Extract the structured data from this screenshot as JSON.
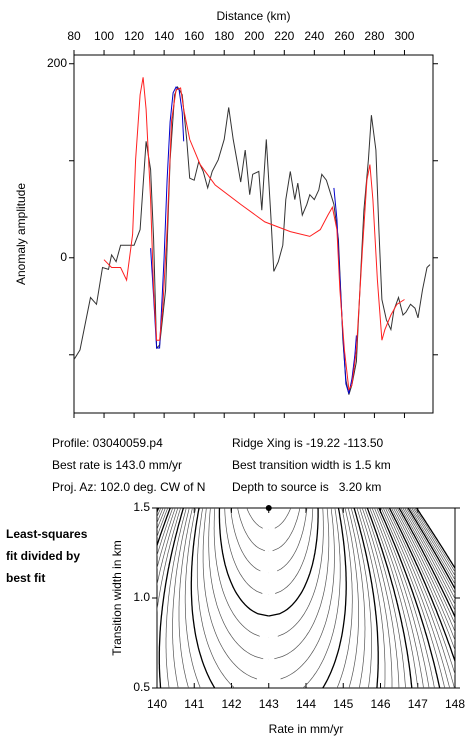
{
  "chart_data": [
    {
      "type": "line",
      "xlabel": "Distance (km)",
      "ylabel": "Anomaly amplitude",
      "xlim": [
        80,
        319
      ],
      "ylim": [
        -160,
        209
      ],
      "xticks": [
        80,
        100,
        120,
        140,
        160,
        180,
        200,
        220,
        240,
        260,
        280,
        300
      ],
      "yticks": [
        0,
        200
      ],
      "minor_yticks": [
        -100,
        100
      ],
      "series": [
        {
          "color": "#333333",
          "x": [
            80,
            84,
            88,
            91,
            95,
            99,
            103,
            105,
            108,
            111,
            120,
            124,
            128,
            131,
            133,
            135,
            137,
            139,
            141,
            144,
            147,
            149,
            152,
            155,
            157,
            160,
            163,
            166,
            169,
            172,
            176,
            180,
            183,
            186,
            189,
            191,
            194,
            197,
            199,
            203,
            205,
            208,
            211,
            213,
            216,
            219,
            221,
            224,
            227,
            229,
            232,
            235,
            237,
            240,
            243,
            245,
            248,
            251,
            253,
            256,
            259,
            261,
            263,
            265,
            268,
            271,
            273,
            276,
            278,
            281,
            283,
            285,
            288,
            291,
            293,
            296,
            299,
            301,
            304,
            307,
            309,
            312,
            315,
            317
          ],
          "values": [
            -105,
            -95,
            -64,
            -41,
            -48,
            -10,
            -12,
            3,
            -4,
            13,
            13,
            29,
            120,
            91,
            19,
            -93,
            -90,
            -62,
            -33,
            101,
            168,
            176,
            168,
            122,
            82,
            80,
            99,
            89,
            72,
            89,
            101,
            122,
            155,
            122,
            96,
            78,
            111,
            65,
            86,
            89,
            49,
            122,
            44,
            -14,
            -4,
            13,
            60,
            89,
            60,
            77,
            44,
            55,
            65,
            60,
            70,
            86,
            80,
            65,
            55,
            19,
            -85,
            -126,
            -141,
            -131,
            -107,
            -12,
            49,
            101,
            147,
            111,
            29,
            -43,
            -64,
            -74,
            -54,
            -41,
            -59,
            -56,
            -48,
            -52,
            -62,
            -33,
            -10,
            -7
          ]
        },
        {
          "color": "#0000cc",
          "x": [
            131,
            133,
            135,
            137,
            138,
            140,
            142,
            144,
            146,
            148,
            150,
            152,
            153,
            null,
            253,
            255,
            257,
            259,
            261,
            263,
            265,
            267,
            268
          ],
          "values": [
            10,
            -40,
            -93,
            -93,
            -62,
            0,
            80,
            140,
            170,
            176,
            173,
            150,
            120,
            null,
            72,
            40,
            -20,
            -80,
            -130,
            -140,
            -125,
            -100,
            -80
          ]
        },
        {
          "color": "#ff2020",
          "x": [
            100,
            105,
            111,
            115,
            119,
            121,
            124,
            126,
            128,
            131,
            133,
            135,
            137,
            139,
            142,
            145,
            148,
            151,
            153,
            157,
            164,
            174,
            191,
            207,
            224,
            237,
            244,
            249,
            252,
            255,
            257,
            260,
            263,
            265,
            268,
            272,
            275,
            277,
            279,
            282,
            285,
            287,
            291,
            295,
            300
          ],
          "values": [
            -2,
            -10,
            -10,
            -23,
            24,
            101,
            168,
            186,
            153,
            60,
            -33,
            -85,
            -85,
            -54,
            29,
            142,
            173,
            175,
            153,
            122,
            96,
            75,
            55,
            37,
            27,
            22,
            29,
            44,
            52,
            29,
            -33,
            -95,
            -136,
            -131,
            -95,
            8,
            80,
            96,
            60,
            -23,
            -85,
            -74,
            -59,
            -48,
            -43
          ]
        }
      ]
    },
    {
      "type": "contour",
      "xlabel": "Rate in mm/yr",
      "ylabel": "Transition width in km",
      "annotation": "Least-squares fit divided by best fit",
      "xlim": [
        140,
        148
      ],
      "ylim": [
        0.5,
        1.5
      ],
      "xticks": [
        140,
        141,
        142,
        143,
        144,
        145,
        146,
        147,
        148
      ],
      "yticks": [
        0.5,
        {
          "value": 1,
          "label": "1.0"
        },
        1.5
      ],
      "series": [
        {
          "color": "#000000",
          "x": [
            143
          ],
          "values": [
            1.5
          ]
        }
      ]
    }
  ],
  "info": {
    "profile": "Profile: 03040059.p4",
    "rate": "Best rate is 143.0 mm/yr",
    "azimuth": "Proj. Az: 102.0 deg. CW of N",
    "ridge": "Ridge Xing is -19.22 -113.50",
    "width": "Best transition width is 1.5 km",
    "depth": "Depth to source is   3.20 km"
  }
}
